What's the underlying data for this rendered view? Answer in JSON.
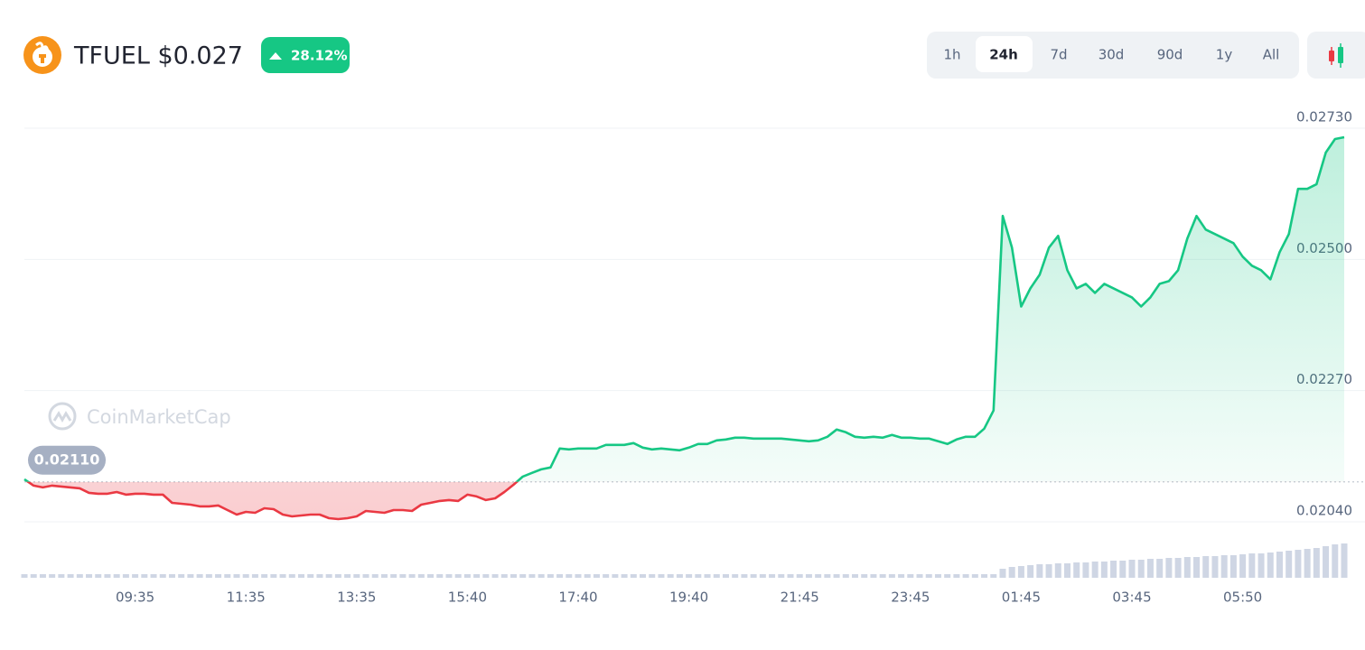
{
  "header": {
    "title": "TFUEL $0.027",
    "change": "28.12%",
    "ranges": [
      "1h",
      "24h",
      "7d",
      "30d",
      "90d",
      "1y",
      "All"
    ],
    "active_range": "24h"
  },
  "chart_data": {
    "type": "line",
    "watermark": "CoinMarketCap",
    "up_color": "#16c784",
    "down_color": "#ea3943",
    "volume_color": "#cfd6e4",
    "baseline": {
      "value": 0.0211,
      "label": "0.02110"
    },
    "ylim": [
      0.0204,
      0.0273
    ],
    "yticks": [
      {
        "value": 0.0204,
        "label": "0.02040"
      },
      {
        "value": 0.0227,
        "label": "0.02270"
      },
      {
        "value": 0.025,
        "label": "0.02500"
      },
      {
        "value": 0.0273,
        "label": "0.02730"
      }
    ],
    "grid": true,
    "categories": [
      null,
      null,
      null,
      null,
      null,
      null,
      null,
      null,
      null,
      null,
      null,
      null,
      "09:35",
      null,
      null,
      null,
      null,
      null,
      null,
      null,
      null,
      null,
      null,
      null,
      "11:35",
      null,
      null,
      null,
      null,
      null,
      null,
      null,
      null,
      null,
      null,
      null,
      "13:35",
      null,
      null,
      null,
      null,
      null,
      null,
      null,
      null,
      null,
      null,
      null,
      "15:40",
      null,
      null,
      null,
      null,
      null,
      null,
      null,
      null,
      null,
      null,
      null,
      "17:40",
      null,
      null,
      null,
      null,
      null,
      null,
      null,
      null,
      null,
      null,
      null,
      "19:40",
      null,
      null,
      null,
      null,
      null,
      null,
      null,
      null,
      null,
      null,
      null,
      "21:45",
      null,
      null,
      null,
      null,
      null,
      null,
      null,
      null,
      null,
      null,
      null,
      "23:45",
      null,
      null,
      null,
      null,
      null,
      null,
      null,
      null,
      null,
      null,
      null,
      "01:45",
      null,
      null,
      null,
      null,
      null,
      null,
      null,
      null,
      null,
      null,
      null,
      "03:45",
      null,
      null,
      null,
      null,
      null,
      null,
      null,
      null,
      null,
      null,
      null,
      "05:50",
      null,
      null,
      null,
      null,
      null,
      null,
      null,
      null,
      null,
      null,
      null
    ],
    "values": [
      0.021146,
      0.021034,
      0.021003,
      0.021034,
      0.021019,
      0.021003,
      0.020987,
      0.020908,
      0.020892,
      0.020892,
      0.020923,
      0.020876,
      0.020892,
      0.020892,
      0.020876,
      0.020876,
      0.020733,
      0.020717,
      0.020701,
      0.02067,
      0.02067,
      0.020686,
      0.020606,
      0.020527,
      0.020574,
      0.020559,
      0.020638,
      0.020622,
      0.020527,
      0.020495,
      0.020511,
      0.020527,
      0.020527,
      0.020463,
      0.020448,
      0.020463,
      0.020495,
      0.02059,
      0.020574,
      0.020559,
      0.020606,
      0.020606,
      0.02059,
      0.020701,
      0.020733,
      0.020765,
      0.020781,
      0.020765,
      0.020876,
      0.020844,
      0.020781,
      0.020812,
      0.020923,
      0.02105,
      0.021193,
      0.021257,
      0.02132,
      0.021352,
      0.021685,
      0.021669,
      0.021685,
      0.021685,
      0.021685,
      0.021748,
      0.021748,
      0.021748,
      0.02178,
      0.021701,
      0.021669,
      0.021685,
      0.021669,
      0.021653,
      0.021701,
      0.021764,
      0.021764,
      0.021828,
      0.021843,
      0.021875,
      0.021875,
      0.021859,
      0.021859,
      0.021859,
      0.021859,
      0.021843,
      0.021828,
      0.021812,
      0.021828,
      0.021891,
      0.022018,
      0.02197,
      0.021891,
      0.021875,
      0.021891,
      0.021875,
      0.021923,
      0.021875,
      0.021875,
      0.021859,
      0.021859,
      0.021812,
      0.021764,
      0.021843,
      0.021891,
      0.021891,
      0.022034,
      0.022351,
      0.025761,
      0.025206,
      0.024175,
      0.024492,
      0.02473,
      0.025206,
      0.025412,
      0.02481,
      0.024492,
      0.024572,
      0.024413,
      0.024572,
      0.024492,
      0.024413,
      0.024334,
      0.024175,
      0.024334,
      0.024572,
      0.024619,
      0.02481,
      0.025365,
      0.025761,
      0.025523,
      0.025444,
      0.025365,
      0.025285,
      0.025048,
      0.024889,
      0.02481,
      0.024651,
      0.025127,
      0.025444,
      0.026237,
      0.026237,
      0.026317,
      0.026872,
      0.02711,
      0.027141
    ],
    "volume": [
      4,
      4,
      4,
      4,
      4,
      4,
      4,
      4,
      4,
      4,
      4,
      4,
      4,
      4,
      4,
      4,
      4,
      4,
      4,
      4,
      4,
      4,
      4,
      4,
      4,
      4,
      4,
      4,
      4,
      4,
      4,
      4,
      4,
      4,
      4,
      4,
      4,
      4,
      4,
      4,
      4,
      4,
      4,
      4,
      4,
      4,
      4,
      4,
      4,
      4,
      4,
      4,
      4,
      4,
      4,
      4,
      4,
      4,
      4,
      4,
      4,
      4,
      4,
      4,
      4,
      4,
      4,
      4,
      4,
      4,
      4,
      4,
      4,
      4,
      4,
      4,
      4,
      4,
      4,
      4,
      4,
      4,
      4,
      4,
      4,
      4,
      4,
      4,
      4,
      4,
      4,
      4,
      4,
      4,
      4,
      4,
      4,
      4,
      4,
      4,
      4,
      4,
      4,
      4,
      4,
      4,
      10,
      12,
      13,
      14,
      15,
      15,
      16,
      16,
      17,
      17,
      18,
      18,
      19,
      19,
      20,
      20,
      21,
      21,
      22,
      22,
      23,
      23,
      24,
      24,
      25,
      25,
      26,
      27,
      27,
      28,
      29,
      30,
      31,
      32,
      33,
      35,
      37,
      38
    ]
  }
}
